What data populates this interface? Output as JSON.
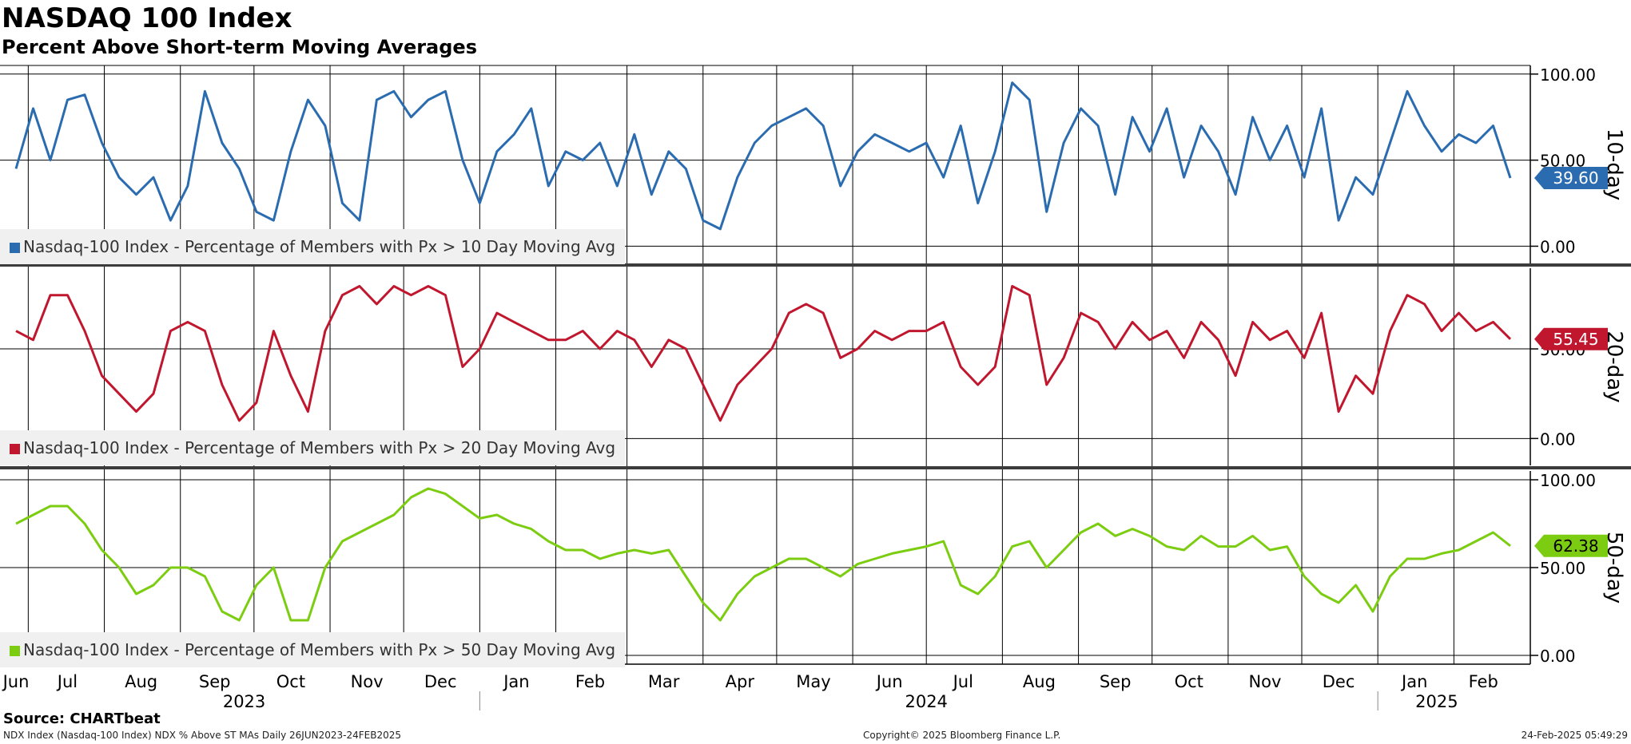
{
  "header": {
    "title": "NASDAQ 100 Index",
    "subtitle": "Percent Above Short-term Moving Averages"
  },
  "footer": {
    "source": "Source: CHARTbeat",
    "series_info": "NDX Index (Nasdaq-100 Index) NDX % Above ST MAs  Daily 26JUN2023-24FEB2025",
    "copyright": "Copyright© 2025 Bloomberg Finance L.P.",
    "timestamp": "24-Feb-2025 05:49:29"
  },
  "colors": {
    "ma10": "#2b6cb0",
    "ma20": "#c0172e",
    "ma50": "#7ccd12"
  },
  "chart_data": {
    "type": "line",
    "x_range": [
      "2023-06-26",
      "2025-02-24"
    ],
    "month_labels": [
      {
        "label": "Jun",
        "date": "2023-06-26"
      },
      {
        "label": "Jul",
        "date": "2023-07-17"
      },
      {
        "label": "Aug",
        "date": "2023-08-16"
      },
      {
        "label": "Sep",
        "date": "2023-09-15"
      },
      {
        "label": "Oct",
        "date": "2023-10-16"
      },
      {
        "label": "Nov",
        "date": "2023-11-16"
      },
      {
        "label": "Dec",
        "date": "2023-12-16"
      },
      {
        "label": "Jan",
        "date": "2024-01-16"
      },
      {
        "label": "Feb",
        "date": "2024-02-15"
      },
      {
        "label": "Mar",
        "date": "2024-03-16"
      },
      {
        "label": "Apr",
        "date": "2024-04-16"
      },
      {
        "label": "May",
        "date": "2024-05-16"
      },
      {
        "label": "Jun",
        "date": "2024-06-16"
      },
      {
        "label": "Jul",
        "date": "2024-07-16"
      },
      {
        "label": "Aug",
        "date": "2024-08-16"
      },
      {
        "label": "Sep",
        "date": "2024-09-16"
      },
      {
        "label": "Oct",
        "date": "2024-10-16"
      },
      {
        "label": "Nov",
        "date": "2024-11-16"
      },
      {
        "label": "Dec",
        "date": "2024-12-16"
      },
      {
        "label": "Jan",
        "date": "2025-01-16"
      },
      {
        "label": "Feb",
        "date": "2025-02-13"
      }
    ],
    "month_gridlines": [
      "2023-07-01",
      "2023-08-01",
      "2023-09-01",
      "2023-10-01",
      "2023-11-01",
      "2023-12-01",
      "2024-01-01",
      "2024-02-01",
      "2024-03-01",
      "2024-04-01",
      "2024-05-01",
      "2024-06-01",
      "2024-07-01",
      "2024-08-01",
      "2024-09-01",
      "2024-10-01",
      "2024-11-01",
      "2024-12-01",
      "2025-01-01",
      "2025-02-01"
    ],
    "year_labels": [
      {
        "label": "2023",
        "date": "2023-09-27"
      },
      {
        "label": "2024",
        "date": "2024-07-01"
      },
      {
        "label": "2025",
        "date": "2025-01-25"
      }
    ],
    "year_separators": [
      "2024-01-01",
      "2025-01-01"
    ],
    "panels": [
      {
        "id": "ma10",
        "axis_title": "10-day",
        "legend": "Nasdaq-100 Index - Percentage of Members with Px > 10 Day Moving Avg",
        "ticks": [
          "100.00",
          "50.00",
          "0.00"
        ],
        "ylim": [
          -10,
          105
        ],
        "last_value": "39.60",
        "series": {
          "x": [
            "2023-06-26",
            "2023-07-03",
            "2023-07-10",
            "2023-07-17",
            "2023-07-24",
            "2023-07-31",
            "2023-08-07",
            "2023-08-14",
            "2023-08-21",
            "2023-08-28",
            "2023-09-04",
            "2023-09-11",
            "2023-09-18",
            "2023-09-25",
            "2023-10-02",
            "2023-10-09",
            "2023-10-16",
            "2023-10-23",
            "2023-10-30",
            "2023-11-06",
            "2023-11-13",
            "2023-11-20",
            "2023-11-27",
            "2023-12-04",
            "2023-12-11",
            "2023-12-18",
            "2023-12-25",
            "2024-01-01",
            "2024-01-08",
            "2024-01-15",
            "2024-01-22",
            "2024-01-29",
            "2024-02-05",
            "2024-02-12",
            "2024-02-19",
            "2024-02-26",
            "2024-03-04",
            "2024-03-11",
            "2024-03-18",
            "2024-03-25",
            "2024-04-01",
            "2024-04-08",
            "2024-04-15",
            "2024-04-22",
            "2024-04-29",
            "2024-05-06",
            "2024-05-13",
            "2024-05-20",
            "2024-05-27",
            "2024-06-03",
            "2024-06-10",
            "2024-06-17",
            "2024-06-24",
            "2024-07-01",
            "2024-07-08",
            "2024-07-15",
            "2024-07-22",
            "2024-07-29",
            "2024-08-05",
            "2024-08-12",
            "2024-08-19",
            "2024-08-26",
            "2024-09-02",
            "2024-09-09",
            "2024-09-16",
            "2024-09-23",
            "2024-09-30",
            "2024-10-07",
            "2024-10-14",
            "2024-10-21",
            "2024-10-28",
            "2024-11-04",
            "2024-11-11",
            "2024-11-18",
            "2024-11-25",
            "2024-12-02",
            "2024-12-09",
            "2024-12-16",
            "2024-12-23",
            "2024-12-30",
            "2025-01-06",
            "2025-01-13",
            "2025-01-20",
            "2025-01-27",
            "2025-02-03",
            "2025-02-10",
            "2025-02-17",
            "2025-02-24"
          ],
          "y": [
            45,
            80,
            50,
            85,
            88,
            60,
            40,
            30,
            40,
            15,
            35,
            90,
            60,
            45,
            20,
            15,
            55,
            85,
            70,
            25,
            15,
            85,
            90,
            75,
            85,
            90,
            50,
            25,
            55,
            65,
            80,
            35,
            55,
            50,
            60,
            35,
            65,
            30,
            55,
            45,
            15,
            10,
            40,
            60,
            70,
            75,
            80,
            70,
            35,
            55,
            65,
            60,
            55,
            60,
            40,
            70,
            25,
            55,
            95,
            85,
            20,
            60,
            80,
            70,
            30,
            75,
            55,
            80,
            40,
            70,
            55,
            30,
            75,
            50,
            70,
            40,
            80,
            15,
            40,
            30,
            60,
            90,
            70,
            55,
            65,
            60,
            70,
            39.6
          ]
        }
      },
      {
        "id": "ma20",
        "axis_title": "20-day",
        "legend": "Nasdaq-100 Index - Percentage of Members with Px > 20 Day Moving Avg",
        "ticks": [
          "50.00",
          "0.00"
        ],
        "ylim": [
          -15,
          95
        ],
        "last_value": "55.45",
        "series": {
          "x": [
            "2023-06-26",
            "2023-07-03",
            "2023-07-10",
            "2023-07-17",
            "2023-07-24",
            "2023-07-31",
            "2023-08-07",
            "2023-08-14",
            "2023-08-21",
            "2023-08-28",
            "2023-09-04",
            "2023-09-11",
            "2023-09-18",
            "2023-09-25",
            "2023-10-02",
            "2023-10-09",
            "2023-10-16",
            "2023-10-23",
            "2023-10-30",
            "2023-11-06",
            "2023-11-13",
            "2023-11-20",
            "2023-11-27",
            "2023-12-04",
            "2023-12-11",
            "2023-12-18",
            "2023-12-25",
            "2024-01-01",
            "2024-01-08",
            "2024-01-15",
            "2024-01-22",
            "2024-01-29",
            "2024-02-05",
            "2024-02-12",
            "2024-02-19",
            "2024-02-26",
            "2024-03-04",
            "2024-03-11",
            "2024-03-18",
            "2024-03-25",
            "2024-04-01",
            "2024-04-08",
            "2024-04-15",
            "2024-04-22",
            "2024-04-29",
            "2024-05-06",
            "2024-05-13",
            "2024-05-20",
            "2024-05-27",
            "2024-06-03",
            "2024-06-10",
            "2024-06-17",
            "2024-06-24",
            "2024-07-01",
            "2024-07-08",
            "2024-07-15",
            "2024-07-22",
            "2024-07-29",
            "2024-08-05",
            "2024-08-12",
            "2024-08-19",
            "2024-08-26",
            "2024-09-02",
            "2024-09-09",
            "2024-09-16",
            "2024-09-23",
            "2024-09-30",
            "2024-10-07",
            "2024-10-14",
            "2024-10-21",
            "2024-10-28",
            "2024-11-04",
            "2024-11-11",
            "2024-11-18",
            "2024-11-25",
            "2024-12-02",
            "2024-12-09",
            "2024-12-16",
            "2024-12-23",
            "2024-12-30",
            "2025-01-06",
            "2025-01-13",
            "2025-01-20",
            "2025-01-27",
            "2025-02-03",
            "2025-02-10",
            "2025-02-17",
            "2025-02-24"
          ],
          "y": [
            60,
            55,
            80,
            80,
            60,
            35,
            25,
            15,
            25,
            60,
            65,
            60,
            30,
            10,
            20,
            60,
            35,
            15,
            60,
            80,
            85,
            75,
            85,
            80,
            85,
            80,
            40,
            50,
            70,
            65,
            60,
            55,
            55,
            60,
            50,
            60,
            55,
            40,
            55,
            50,
            30,
            10,
            30,
            40,
            50,
            70,
            75,
            70,
            45,
            50,
            60,
            55,
            60,
            60,
            65,
            40,
            30,
            40,
            85,
            80,
            30,
            45,
            70,
            65,
            50,
            65,
            55,
            60,
            45,
            65,
            55,
            35,
            65,
            55,
            60,
            45,
            70,
            15,
            35,
            25,
            60,
            80,
            75,
            60,
            70,
            60,
            65,
            55.45
          ]
        }
      },
      {
        "id": "ma50",
        "axis_title": "50-day",
        "legend": "Nasdaq-100 Index - Percentage of Members with Px > 50 Day Moving Avg",
        "ticks": [
          "100.00",
          "50.00",
          "0.00"
        ],
        "ylim": [
          -5,
          105
        ],
        "last_value": "62.38",
        "series": {
          "x": [
            "2023-06-26",
            "2023-07-03",
            "2023-07-10",
            "2023-07-17",
            "2023-07-24",
            "2023-07-31",
            "2023-08-07",
            "2023-08-14",
            "2023-08-21",
            "2023-08-28",
            "2023-09-04",
            "2023-09-11",
            "2023-09-18",
            "2023-09-25",
            "2023-10-02",
            "2023-10-09",
            "2023-10-16",
            "2023-10-23",
            "2023-10-30",
            "2023-11-06",
            "2023-11-13",
            "2023-11-20",
            "2023-11-27",
            "2023-12-04",
            "2023-12-11",
            "2023-12-18",
            "2023-12-25",
            "2024-01-01",
            "2024-01-08",
            "2024-01-15",
            "2024-01-22",
            "2024-01-29",
            "2024-02-05",
            "2024-02-12",
            "2024-02-19",
            "2024-02-26",
            "2024-03-04",
            "2024-03-11",
            "2024-03-18",
            "2024-03-25",
            "2024-04-01",
            "2024-04-08",
            "2024-04-15",
            "2024-04-22",
            "2024-04-29",
            "2024-05-06",
            "2024-05-13",
            "2024-05-20",
            "2024-05-27",
            "2024-06-03",
            "2024-06-10",
            "2024-06-17",
            "2024-06-24",
            "2024-07-01",
            "2024-07-08",
            "2024-07-15",
            "2024-07-22",
            "2024-07-29",
            "2024-08-05",
            "2024-08-12",
            "2024-08-19",
            "2024-08-26",
            "2024-09-02",
            "2024-09-09",
            "2024-09-16",
            "2024-09-23",
            "2024-09-30",
            "2024-10-07",
            "2024-10-14",
            "2024-10-21",
            "2024-10-28",
            "2024-11-04",
            "2024-11-11",
            "2024-11-18",
            "2024-11-25",
            "2024-12-02",
            "2024-12-09",
            "2024-12-16",
            "2024-12-23",
            "2024-12-30",
            "2025-01-06",
            "2025-01-13",
            "2025-01-20",
            "2025-01-27",
            "2025-02-03",
            "2025-02-10",
            "2025-02-17",
            "2025-02-24"
          ],
          "y": [
            75,
            80,
            85,
            85,
            75,
            60,
            50,
            35,
            40,
            50,
            50,
            45,
            25,
            20,
            40,
            50,
            20,
            20,
            50,
            65,
            70,
            75,
            80,
            90,
            95,
            92,
            85,
            78,
            80,
            75,
            72,
            65,
            60,
            60,
            55,
            58,
            60,
            58,
            60,
            45,
            30,
            20,
            35,
            45,
            50,
            55,
            55,
            50,
            45,
            52,
            55,
            58,
            60,
            62,
            65,
            40,
            35,
            45,
            62,
            65,
            50,
            60,
            70,
            75,
            68,
            72,
            68,
            62,
            60,
            68,
            62,
            62,
            68,
            60,
            62,
            45,
            35,
            30,
            40,
            25,
            45,
            55,
            55,
            58,
            60,
            65,
            70,
            62.38
          ]
        }
      }
    ]
  }
}
